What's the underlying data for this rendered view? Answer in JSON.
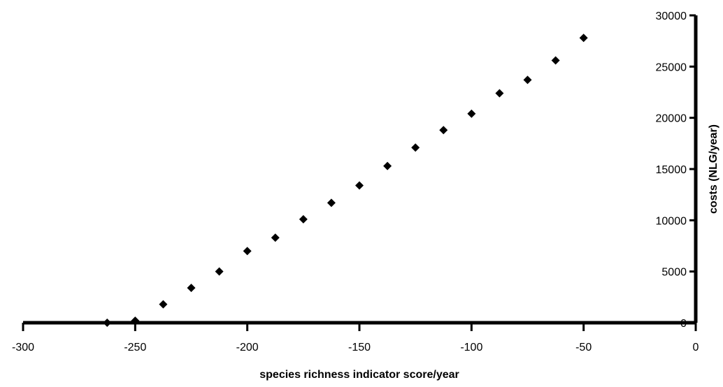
{
  "chart_data": {
    "type": "scatter",
    "title": "",
    "xlabel": "species richness indicator score/year",
    "ylabel": "costs (NLG/year)",
    "xlim": [
      -300,
      0
    ],
    "ylim": [
      0,
      30000
    ],
    "x_ticks": [
      -300,
      -250,
      -200,
      -150,
      -100,
      -50,
      0
    ],
    "y_ticks": [
      0,
      5000,
      10000,
      15000,
      20000,
      25000,
      30000
    ],
    "y_axis_position": "right",
    "marker": "diamond",
    "marker_color": "#000000",
    "grid": false,
    "legend": "none",
    "series": [
      {
        "x": [
          -262.5,
          -250,
          -237.5,
          -225,
          -212.5,
          -200,
          -187.5,
          -175,
          -162.5,
          -150,
          -137.5,
          -125,
          -112.5,
          -100,
          -87.5,
          -75,
          -62.5,
          -50
        ],
        "y": [
          0,
          200,
          1800,
          3400,
          5000,
          7000,
          8300,
          10100,
          11700,
          13400,
          15300,
          17100,
          18800,
          20400,
          22400,
          23700,
          25600,
          27800
        ]
      }
    ]
  }
}
